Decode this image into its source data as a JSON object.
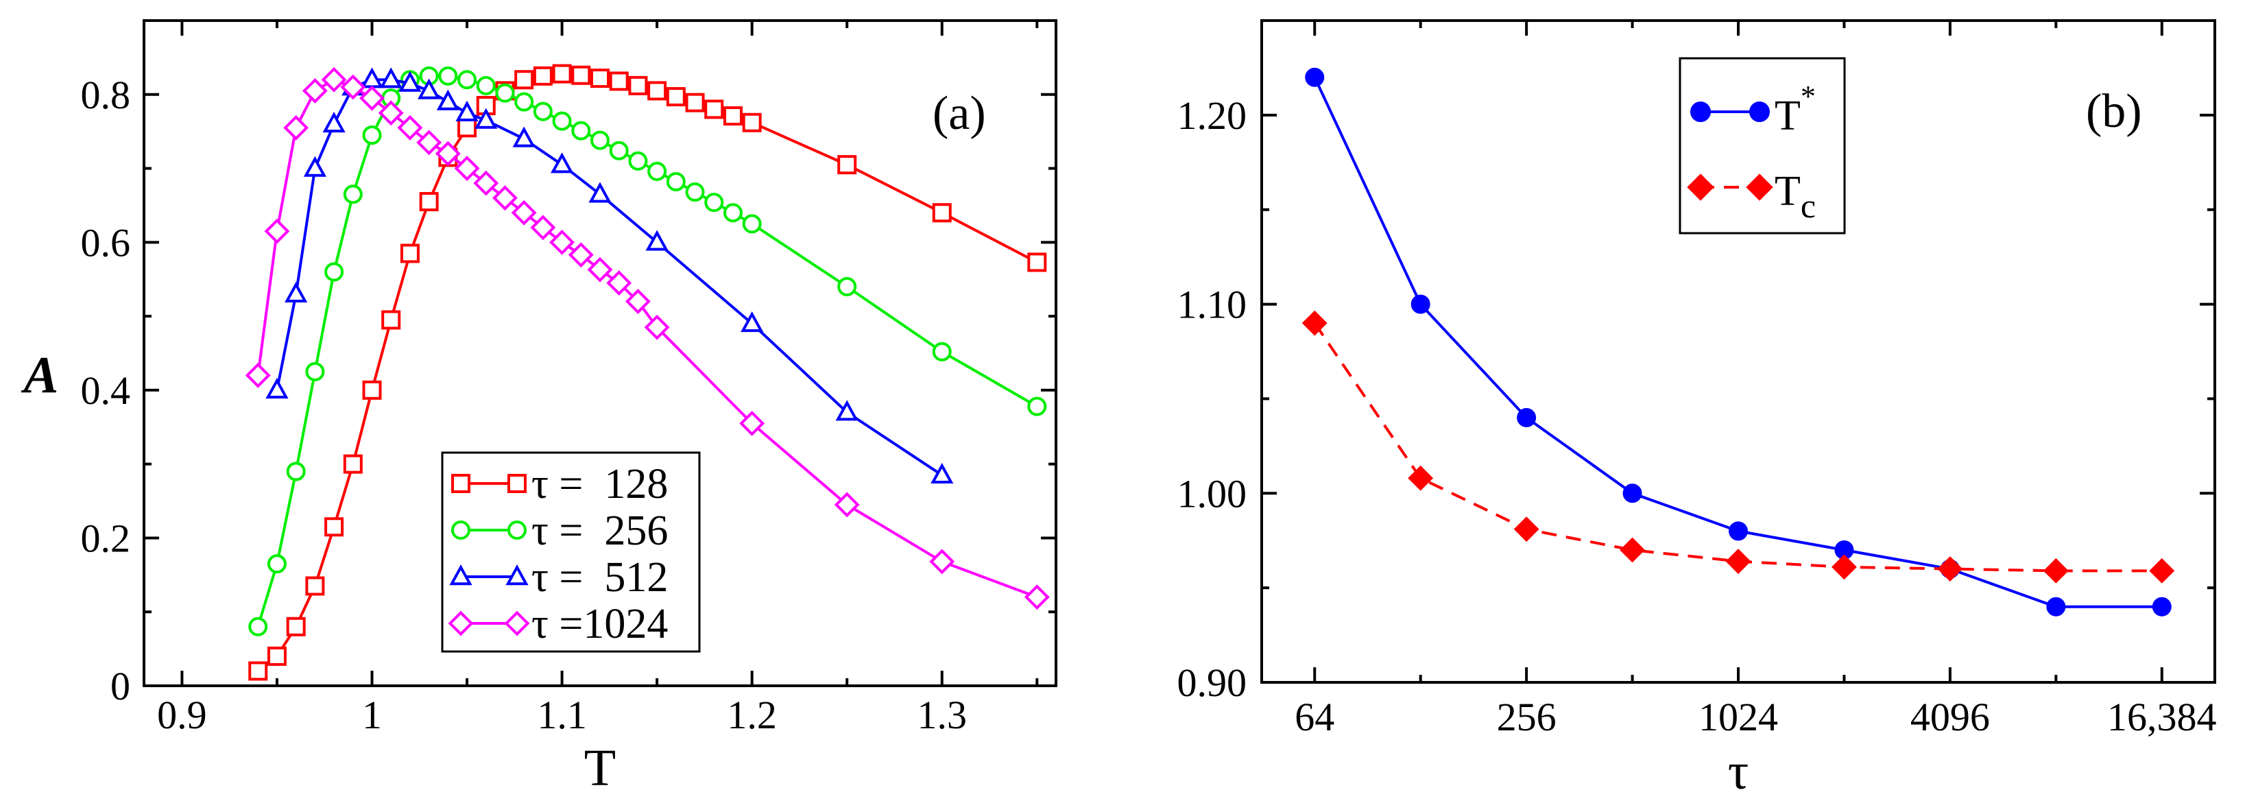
{
  "chart_data": [
    {
      "type": "line",
      "panel_label": "(a)",
      "xlabel": "T",
      "ylabel": "A",
      "xlim": [
        0.88,
        1.36
      ],
      "ylim": [
        0,
        0.9
      ],
      "x_ticks": [
        0.9,
        1.0,
        1.1,
        1.2,
        1.3
      ],
      "x_tick_labels": [
        "0.9",
        "1",
        "1.1",
        "1.2",
        "1.3"
      ],
      "y_ticks": [
        0,
        0.2,
        0.4,
        0.6,
        0.8
      ],
      "y_tick_labels": [
        "0",
        "0.2",
        "0.4",
        "0.6",
        "0.8"
      ],
      "legend_position": "bottom-center",
      "series": [
        {
          "name": "τ =  128",
          "color": "#ff0000",
          "marker": "square",
          "x": [
            0.94,
            0.95,
            0.96,
            0.97,
            0.98,
            0.99,
            1.0,
            1.01,
            1.02,
            1.03,
            1.04,
            1.05,
            1.06,
            1.07,
            1.08,
            1.09,
            1.1,
            1.11,
            1.12,
            1.13,
            1.14,
            1.15,
            1.16,
            1.17,
            1.18,
            1.19,
            1.2,
            1.25,
            1.3,
            1.35
          ],
          "y": [
            0.02,
            0.04,
            0.08,
            0.135,
            0.215,
            0.3,
            0.4,
            0.495,
            0.585,
            0.655,
            0.715,
            0.755,
            0.785,
            0.805,
            0.82,
            0.825,
            0.828,
            0.826,
            0.822,
            0.818,
            0.812,
            0.805,
            0.797,
            0.789,
            0.78,
            0.771,
            0.762,
            0.705,
            0.64,
            0.573
          ]
        },
        {
          "name": "τ =  256",
          "color": "#00ee00",
          "marker": "circle",
          "x": [
            0.94,
            0.95,
            0.96,
            0.97,
            0.98,
            0.99,
            1.0,
            1.01,
            1.02,
            1.03,
            1.04,
            1.05,
            1.06,
            1.07,
            1.08,
            1.09,
            1.1,
            1.11,
            1.12,
            1.13,
            1.14,
            1.15,
            1.16,
            1.17,
            1.18,
            1.19,
            1.2,
            1.25,
            1.3,
            1.35
          ],
          "y": [
            0.08,
            0.165,
            0.29,
            0.425,
            0.56,
            0.665,
            0.745,
            0.795,
            0.82,
            0.825,
            0.825,
            0.82,
            0.812,
            0.802,
            0.79,
            0.777,
            0.764,
            0.751,
            0.738,
            0.724,
            0.71,
            0.696,
            0.682,
            0.668,
            0.654,
            0.64,
            0.625,
            0.54,
            0.452,
            0.378
          ]
        },
        {
          "name": "τ =  512",
          "color": "#0000ff",
          "marker": "triangle",
          "x": [
            0.95,
            0.96,
            0.97,
            0.98,
            0.99,
            1.0,
            1.01,
            1.02,
            1.03,
            1.04,
            1.05,
            1.06,
            1.08,
            1.1,
            1.12,
            1.15,
            1.2,
            1.25,
            1.3
          ],
          "y": [
            0.4,
            0.53,
            0.7,
            0.76,
            0.81,
            0.82,
            0.82,
            0.815,
            0.805,
            0.79,
            0.775,
            0.765,
            0.74,
            0.705,
            0.665,
            0.6,
            0.49,
            0.37,
            0.285
          ]
        },
        {
          "name": "τ =1024",
          "color": "#ff00ff",
          "marker": "diamond",
          "x": [
            0.94,
            0.95,
            0.96,
            0.97,
            0.98,
            0.99,
            1.0,
            1.01,
            1.02,
            1.03,
            1.04,
            1.05,
            1.06,
            1.07,
            1.08,
            1.09,
            1.1,
            1.11,
            1.12,
            1.13,
            1.14,
            1.15,
            1.2,
            1.25,
            1.3,
            1.35
          ],
          "y": [
            0.42,
            0.615,
            0.755,
            0.805,
            0.82,
            0.81,
            0.795,
            0.775,
            0.755,
            0.735,
            0.72,
            0.7,
            0.68,
            0.66,
            0.64,
            0.62,
            0.6,
            0.583,
            0.563,
            0.545,
            0.52,
            0.485,
            0.355,
            0.245,
            0.168,
            0.12
          ]
        }
      ]
    },
    {
      "type": "line",
      "panel_label": "(b)",
      "xlabel": "τ",
      "ylabel": "",
      "x_scale": "log2",
      "xlim_log2": [
        5.5,
        14.5
      ],
      "ylim": [
        0.9,
        1.25
      ],
      "x_ticks": [
        64,
        256,
        1024,
        4096,
        16384
      ],
      "x_tick_labels": [
        "64",
        "256",
        "1024",
        "4096",
        "16,384"
      ],
      "y_ticks": [
        0.9,
        1.0,
        1.1,
        1.2
      ],
      "y_tick_labels": [
        "0.90",
        "1.00",
        "1.10",
        "1.20"
      ],
      "legend_position": "top-left",
      "series": [
        {
          "name": "T",
          "superscript": "*",
          "subscript": "",
          "color": "#0000ff",
          "marker": "circle",
          "dashed": false,
          "x": [
            64,
            128,
            256,
            512,
            1024,
            2048,
            4096,
            8192,
            16384
          ],
          "y": [
            1.22,
            1.1,
            1.04,
            1.0,
            0.98,
            0.97,
            0.96,
            0.94,
            0.94
          ]
        },
        {
          "name": "T",
          "superscript": "",
          "subscript": "c",
          "color": "#ff0000",
          "marker": "diamond",
          "dashed": true,
          "x": [
            64,
            128,
            256,
            512,
            1024,
            2048,
            4096,
            8192,
            16384
          ],
          "y": [
            1.09,
            1.008,
            0.981,
            0.97,
            0.964,
            0.961,
            0.96,
            0.959,
            0.959
          ]
        }
      ]
    }
  ]
}
